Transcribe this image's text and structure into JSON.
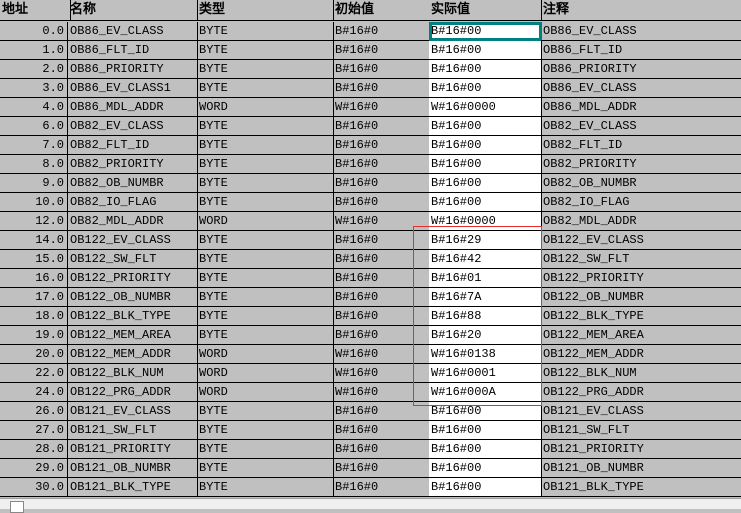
{
  "headers": [
    "地址",
    "名称",
    "类型",
    "初始值",
    "实际值",
    "注释"
  ],
  "rows": [
    [
      "0.0",
      "OB86_EV_CLASS",
      "BYTE",
      "B#16#0",
      "B#16#00",
      "OB86_EV_CLASS"
    ],
    [
      "1.0",
      "OB86_FLT_ID",
      "BYTE",
      "B#16#0",
      "B#16#00",
      "OB86_FLT_ID"
    ],
    [
      "2.0",
      "OB86_PRIORITY",
      "BYTE",
      "B#16#0",
      "B#16#00",
      "OB86_PRIORITY"
    ],
    [
      "3.0",
      "OB86_EV_CLASS1",
      "BYTE",
      "B#16#0",
      "B#16#00",
      "OB86_EV_CLASS"
    ],
    [
      "4.0",
      "OB86_MDL_ADDR",
      "WORD",
      "W#16#0",
      "W#16#0000",
      "OB86_MDL_ADDR"
    ],
    [
      "6.0",
      "OB82_EV_CLASS",
      "BYTE",
      "B#16#0",
      "B#16#00",
      "OB82_EV_CLASS"
    ],
    [
      "7.0",
      "OB82_FLT_ID",
      "BYTE",
      "B#16#0",
      "B#16#00",
      "OB82_FLT_ID"
    ],
    [
      "8.0",
      "OB82_PRIORITY",
      "BYTE",
      "B#16#0",
      "B#16#00",
      "OB82_PRIORITY"
    ],
    [
      "9.0",
      "OB82_OB_NUMBR",
      "BYTE",
      "B#16#0",
      "B#16#00",
      "OB82_OB_NUMBR"
    ],
    [
      "10.0",
      "OB82_IO_FLAG",
      "BYTE",
      "B#16#0",
      "B#16#00",
      "OB82_IO_FLAG"
    ],
    [
      "12.0",
      "OB82_MDL_ADDR",
      "WORD",
      "W#16#0",
      "W#16#0000",
      "OB82_MDL_ADDR"
    ],
    [
      "14.0",
      "OB122_EV_CLASS",
      "BYTE",
      "B#16#0",
      "B#16#29",
      "OB122_EV_CLASS"
    ],
    [
      "15.0",
      "OB122_SW_FLT",
      "BYTE",
      "B#16#0",
      "B#16#42",
      "OB122_SW_FLT"
    ],
    [
      "16.0",
      "OB122_PRIORITY",
      "BYTE",
      "B#16#0",
      "B#16#01",
      "OB122_PRIORITY"
    ],
    [
      "17.0",
      "OB122_OB_NUMBR",
      "BYTE",
      "B#16#0",
      "B#16#7A",
      "OB122_OB_NUMBR"
    ],
    [
      "18.0",
      "OB122_BLK_TYPE",
      "BYTE",
      "B#16#0",
      "B#16#88",
      "OB122_BLK_TYPE"
    ],
    [
      "19.0",
      "OB122_MEM_AREA",
      "BYTE",
      "B#16#0",
      "B#16#20",
      "OB122_MEM_AREA"
    ],
    [
      "20.0",
      "OB122_MEM_ADDR",
      "WORD",
      "W#16#0",
      "W#16#0138",
      "OB122_MEM_ADDR"
    ],
    [
      "22.0",
      "OB122_BLK_NUM",
      "WORD",
      "W#16#0",
      "W#16#0001",
      "OB122_BLK_NUM"
    ],
    [
      "24.0",
      "OB122_PRG_ADDR",
      "WORD",
      "W#16#0",
      "W#16#000A",
      "OB122_PRG_ADDR"
    ],
    [
      "26.0",
      "OB121_EV_CLASS",
      "BYTE",
      "B#16#0",
      "B#16#00",
      "OB121_EV_CLASS"
    ],
    [
      "27.0",
      "OB121_SW_FLT",
      "BYTE",
      "B#16#0",
      "B#16#00",
      "OB121_SW_FLT"
    ],
    [
      "28.0",
      "OB121_PRIORITY",
      "BYTE",
      "B#16#0",
      "B#16#00",
      "OB121_PRIORITY"
    ],
    [
      "29.0",
      "OB121_OB_NUMBR",
      "BYTE",
      "B#16#0",
      "B#16#00",
      "OB121_OB_NUMBR"
    ],
    [
      "30.0",
      "OB121_BLK_TYPE",
      "BYTE",
      "B#16#0",
      "B#16#00",
      "OB121_BLK_TYPE"
    ]
  ],
  "colors": {
    "selection": "#008080",
    "highlight_box": "#e83030",
    "grid_bg": "#c0c0c0"
  }
}
